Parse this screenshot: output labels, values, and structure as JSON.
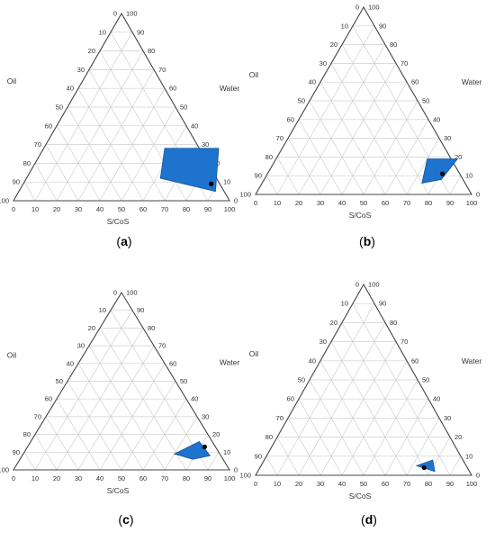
{
  "axis_labels": {
    "oil": "Oil",
    "water": "Water",
    "scos": "S/CoS"
  },
  "tick_values": [
    0,
    10,
    20,
    30,
    40,
    50,
    60,
    70,
    80,
    90,
    100
  ],
  "colors": {
    "region_fill": "#1E73CF",
    "region_stroke": "#15579C",
    "point": "#000000",
    "grid": "#cfcfcf",
    "frame": "#444444"
  },
  "panels": [
    {
      "id": "a",
      "caption": {
        "open": "(",
        "letter": "a",
        "close": ")"
      }
    },
    {
      "id": "b",
      "caption": {
        "open": "(",
        "letter": "b",
        "close": ")"
      }
    },
    {
      "id": "c",
      "caption": {
        "open": "(",
        "letter": "c",
        "close": ")"
      }
    },
    {
      "id": "d",
      "caption": {
        "open": "(",
        "letter": "d",
        "close": ")"
      }
    }
  ],
  "chart_data": [
    {
      "type": "ternary",
      "panel": "a",
      "axes": [
        "S/CoS",
        "Water",
        "Oil"
      ],
      "region": [
        {
          "scos": 56,
          "water": 28,
          "oil": 16
        },
        {
          "scos": 81,
          "water": 28,
          "oil": -9
        },
        {
          "scos": 91,
          "water": 5,
          "oil": 4
        },
        {
          "scos": 62,
          "water": 12,
          "oil": 26
        }
      ],
      "point": {
        "scos": 87,
        "water": 9,
        "oil": 4
      }
    },
    {
      "type": "ternary",
      "panel": "b",
      "axes": [
        "S/CoS",
        "Water",
        "Oil"
      ],
      "region": [
        {
          "scos": 70,
          "water": 19,
          "oil": 11
        },
        {
          "scos": 84,
          "water": 19,
          "oil": -3
        },
        {
          "scos": 82,
          "water": 8,
          "oil": 10
        },
        {
          "scos": 74,
          "water": 6,
          "oil": 20
        }
      ],
      "point": {
        "scos": 81,
        "water": 11,
        "oil": 8
      }
    },
    {
      "type": "ternary",
      "panel": "c",
      "axes": [
        "S/CoS",
        "Water",
        "Oil"
      ],
      "region": [
        {
          "scos": 70,
          "water": 9,
          "oil": 21
        },
        {
          "scos": 78,
          "water": 16,
          "oil": 6
        },
        {
          "scos": 87,
          "water": 8,
          "oil": 5
        },
        {
          "scos": 80,
          "water": 6,
          "oil": 14
        }
      ],
      "point": {
        "scos": 82,
        "water": 13,
        "oil": 5
      }
    },
    {
      "type": "ternary",
      "panel": "d",
      "axes": [
        "S/CoS",
        "Water",
        "Oil"
      ],
      "region": [
        {
          "scos": 72,
          "water": 5,
          "oil": 23
        },
        {
          "scos": 78,
          "water": 8,
          "oil": 14
        },
        {
          "scos": 82,
          "water": 2,
          "oil": 16
        }
      ],
      "point": {
        "scos": 76,
        "water": 4,
        "oil": 20
      }
    }
  ]
}
